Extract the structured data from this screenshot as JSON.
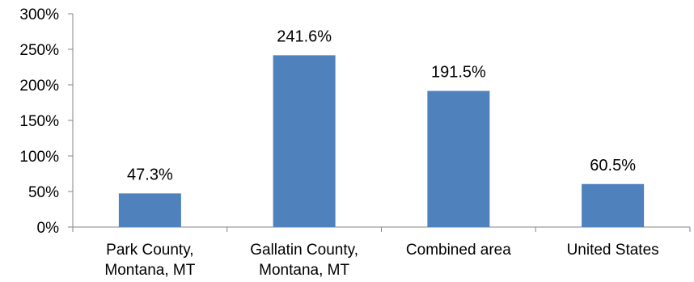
{
  "chart_data": {
    "type": "bar",
    "title": "",
    "xlabel": "",
    "ylabel": "",
    "categories": [
      [
        "Park County,",
        "Montana, MT"
      ],
      [
        "Gallatin County,",
        "Montana, MT"
      ],
      [
        "Combined area"
      ],
      [
        "United States"
      ]
    ],
    "values": [
      47.3,
      241.6,
      191.5,
      60.5
    ],
    "data_labels": [
      "47.3%",
      "241.6%",
      "191.5%",
      "60.5%"
    ],
    "ylim": [
      0,
      300
    ],
    "yticks": [
      0,
      50,
      100,
      150,
      200,
      250,
      300
    ],
    "ytick_labels": [
      "0%",
      "50%",
      "100%",
      "150%",
      "200%",
      "250%",
      "300%"
    ],
    "bar_color": "#4F81BD",
    "axis_color": "#868686",
    "grid": false,
    "legend": "none"
  }
}
